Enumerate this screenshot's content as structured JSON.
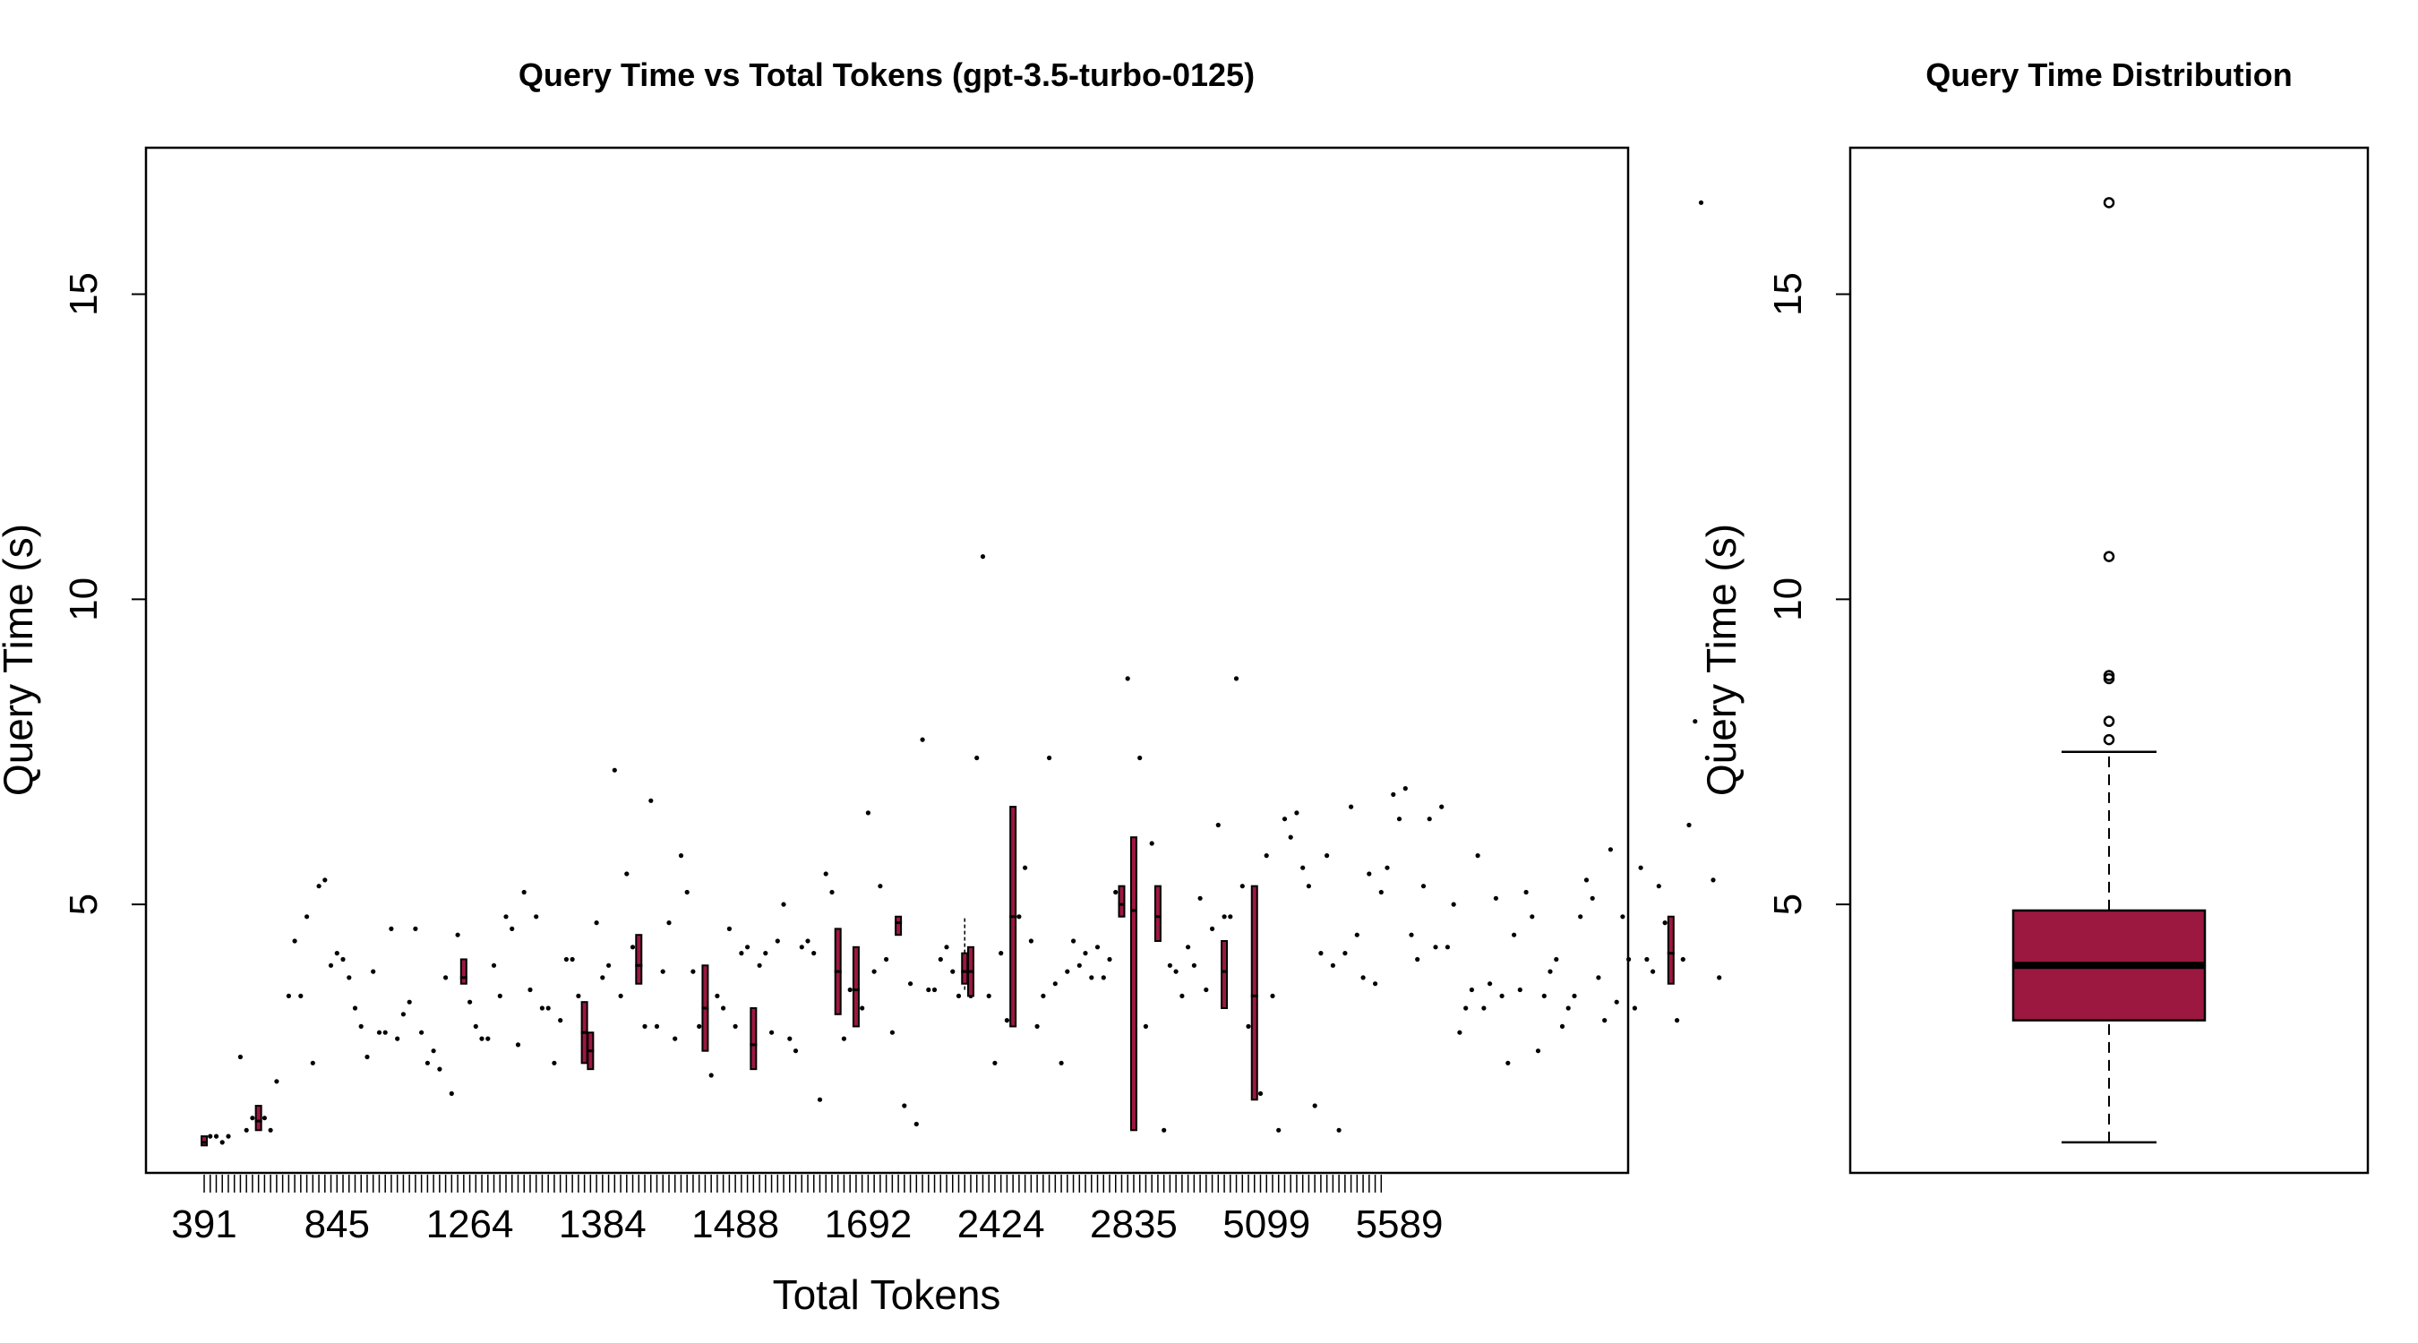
{
  "colors": {
    "box_fill": "#9c1840",
    "stroke": "#000000",
    "background": "#ffffff"
  },
  "chart_data": [
    {
      "type": "box",
      "title": "Query Time vs Total Tokens (gpt-3.5-turbo-0125)",
      "xlabel": "Total Tokens",
      "ylabel": "Query Time (s)",
      "ylim": [
        0.6,
        17.4
      ],
      "y_ticks": [
        "5",
        "10",
        "15"
      ],
      "x_ticks": [
        "391",
        "845",
        "1264",
        "1384",
        "1488",
        "1692",
        "2424",
        "2835",
        "5099",
        "5589"
      ],
      "category_count": 196,
      "single_values": [
        [
          2,
          1.2
        ],
        [
          3,
          1.2
        ],
        [
          4,
          1.1
        ],
        [
          5,
          1.2
        ],
        [
          7,
          2.5
        ],
        [
          8,
          1.3
        ],
        [
          9,
          1.5
        ],
        [
          11,
          1.5
        ],
        [
          12,
          1.3
        ],
        [
          13,
          2.1
        ],
        [
          15,
          3.5
        ],
        [
          16,
          4.4
        ],
        [
          17,
          3.5
        ],
        [
          18,
          4.8
        ],
        [
          19,
          2.4
        ],
        [
          20,
          5.3
        ],
        [
          21,
          5.4
        ],
        [
          22,
          4.0
        ],
        [
          23,
          4.2
        ],
        [
          24,
          4.1
        ],
        [
          25,
          3.8
        ],
        [
          26,
          3.3
        ],
        [
          27,
          3.0
        ],
        [
          28,
          2.5
        ],
        [
          29,
          3.9
        ],
        [
          30,
          2.9
        ],
        [
          31,
          2.9
        ],
        [
          32,
          4.6
        ],
        [
          33,
          2.8
        ],
        [
          34,
          3.2
        ],
        [
          35,
          3.4
        ],
        [
          36,
          4.6
        ],
        [
          37,
          2.9
        ],
        [
          38,
          2.4
        ],
        [
          39,
          2.6
        ],
        [
          40,
          2.3
        ],
        [
          41,
          3.8
        ],
        [
          42,
          1.9
        ],
        [
          43,
          4.5
        ],
        [
          45,
          3.4
        ],
        [
          46,
          3.0
        ],
        [
          47,
          2.8
        ],
        [
          48,
          2.8
        ],
        [
          49,
          4.0
        ],
        [
          50,
          3.5
        ],
        [
          51,
          4.8
        ],
        [
          52,
          4.6
        ],
        [
          53,
          2.7
        ],
        [
          54,
          5.2
        ],
        [
          55,
          3.6
        ],
        [
          56,
          4.8
        ],
        [
          57,
          3.3
        ],
        [
          58,
          3.3
        ],
        [
          59,
          2.4
        ],
        [
          60,
          3.1
        ],
        [
          61,
          4.1
        ],
        [
          62,
          4.1
        ],
        [
          63,
          3.5
        ],
        [
          66,
          4.7
        ],
        [
          67,
          3.8
        ],
        [
          68,
          4.0
        ],
        [
          69,
          7.2
        ],
        [
          70,
          3.5
        ],
        [
          71,
          5.5
        ],
        [
          72,
          4.3
        ],
        [
          74,
          3.0
        ],
        [
          75,
          6.7
        ],
        [
          76,
          3.0
        ],
        [
          77,
          3.9
        ],
        [
          78,
          4.7
        ],
        [
          79,
          2.8
        ],
        [
          80,
          5.8
        ],
        [
          81,
          5.2
        ],
        [
          82,
          3.9
        ],
        [
          83,
          3.0
        ],
        [
          85,
          2.2
        ],
        [
          86,
          3.5
        ],
        [
          87,
          3.3
        ],
        [
          88,
          4.6
        ],
        [
          89,
          3.0
        ],
        [
          90,
          4.2
        ],
        [
          91,
          4.3
        ],
        [
          93,
          4.0
        ],
        [
          94,
          4.2
        ],
        [
          95,
          2.9
        ],
        [
          96,
          4.4
        ],
        [
          97,
          5.0
        ],
        [
          98,
          2.8
        ],
        [
          99,
          2.6
        ],
        [
          100,
          4.3
        ],
        [
          101,
          4.4
        ],
        [
          102,
          4.2
        ],
        [
          103,
          1.8
        ],
        [
          104,
          5.5
        ],
        [
          105,
          5.2
        ],
        [
          107,
          2.8
        ],
        [
          108,
          3.6
        ],
        [
          110,
          3.3
        ],
        [
          111,
          6.5
        ],
        [
          112,
          3.9
        ],
        [
          113,
          5.3
        ],
        [
          114,
          4.1
        ],
        [
          115,
          2.9
        ],
        [
          117,
          1.7
        ],
        [
          118,
          3.7
        ],
        [
          119,
          1.4
        ],
        [
          120,
          7.7
        ],
        [
          121,
          3.6
        ],
        [
          122,
          3.6
        ],
        [
          123,
          4.1
        ],
        [
          124,
          4.3
        ],
        [
          125,
          3.9
        ],
        [
          126,
          3.5
        ],
        [
          128,
          3.5
        ],
        [
          129,
          7.4
        ],
        [
          130,
          10.7
        ],
        [
          131,
          3.5
        ],
        [
          132,
          2.4
        ],
        [
          133,
          4.2
        ],
        [
          134,
          3.1
        ],
        [
          136,
          4.8
        ],
        [
          137,
          5.6
        ],
        [
          138,
          4.4
        ],
        [
          139,
          3.0
        ],
        [
          140,
          3.5
        ],
        [
          141,
          7.4
        ],
        [
          142,
          3.7
        ],
        [
          143,
          2.4
        ],
        [
          144,
          3.9
        ],
        [
          145,
          4.4
        ],
        [
          146,
          4.0
        ],
        [
          147,
          4.2
        ],
        [
          148,
          3.8
        ],
        [
          149,
          4.3
        ],
        [
          150,
          3.8
        ],
        [
          151,
          4.1
        ],
        [
          152,
          5.2
        ],
        [
          154,
          8.7
        ],
        [
          156,
          7.4
        ],
        [
          157,
          3.0
        ],
        [
          158,
          6.0
        ],
        [
          160,
          1.3
        ],
        [
          161,
          4.0
        ],
        [
          162,
          3.9
        ],
        [
          163,
          3.5
        ],
        [
          164,
          4.3
        ],
        [
          165,
          4.0
        ],
        [
          166,
          5.1
        ],
        [
          167,
          3.6
        ],
        [
          168,
          4.6
        ],
        [
          169,
          6.3
        ],
        [
          170,
          4.8
        ],
        [
          171,
          4.8
        ],
        [
          172,
          8.7
        ],
        [
          173,
          5.3
        ],
        [
          174,
          3.0
        ],
        [
          176,
          1.9
        ],
        [
          177,
          5.8
        ],
        [
          178,
          3.5
        ],
        [
          179,
          1.3
        ],
        [
          180,
          6.4
        ],
        [
          181,
          6.1
        ],
        [
          182,
          6.5
        ],
        [
          183,
          5.6
        ],
        [
          184,
          5.3
        ],
        [
          185,
          1.7
        ],
        [
          186,
          4.2
        ],
        [
          187,
          5.8
        ],
        [
          188,
          4.0
        ],
        [
          189,
          1.3
        ],
        [
          190,
          4.2
        ],
        [
          191,
          6.6
        ],
        [
          192,
          4.5
        ],
        [
          193,
          3.8
        ],
        [
          194,
          5.5
        ],
        [
          195,
          3.7
        ],
        [
          196,
          5.2
        ],
        [
          197,
          5.6
        ],
        [
          198,
          6.8
        ],
        [
          199,
          6.4
        ],
        [
          200,
          6.9
        ],
        [
          201,
          4.5
        ],
        [
          202,
          4.1
        ],
        [
          203,
          5.3
        ],
        [
          204,
          6.4
        ],
        [
          205,
          4.3
        ],
        [
          206,
          6.6
        ],
        [
          207,
          4.3
        ],
        [
          208,
          5.0
        ],
        [
          209,
          2.9
        ],
        [
          210,
          3.3
        ],
        [
          211,
          3.6
        ],
        [
          212,
          5.8
        ],
        [
          213,
          3.3
        ],
        [
          214,
          3.7
        ],
        [
          215,
          5.1
        ],
        [
          216,
          3.5
        ],
        [
          217,
          2.4
        ],
        [
          218,
          4.5
        ],
        [
          219,
          3.6
        ],
        [
          220,
          5.2
        ],
        [
          221,
          4.8
        ],
        [
          222,
          2.6
        ],
        [
          223,
          3.5
        ],
        [
          224,
          3.9
        ],
        [
          225,
          4.1
        ],
        [
          226,
          3.0
        ],
        [
          227,
          3.3
        ],
        [
          228,
          3.5
        ],
        [
          229,
          4.8
        ],
        [
          230,
          5.4
        ],
        [
          231,
          5.1
        ],
        [
          232,
          3.8
        ],
        [
          233,
          3.1
        ],
        [
          234,
          5.9
        ],
        [
          235,
          3.4
        ],
        [
          236,
          4.8
        ],
        [
          237,
          4.1
        ],
        [
          238,
          3.3
        ],
        [
          239,
          5.6
        ],
        [
          240,
          4.1
        ],
        [
          241,
          3.9
        ],
        [
          242,
          5.3
        ],
        [
          243,
          4.7
        ],
        [
          245,
          3.1
        ],
        [
          246,
          4.1
        ],
        [
          247,
          6.3
        ],
        [
          248,
          8.0
        ],
        [
          249,
          16.5
        ],
        [
          250,
          7.4
        ],
        [
          251,
          5.4
        ],
        [
          252,
          3.8
        ]
      ],
      "groups": [
        {
          "x": 1,
          "low": 1.05,
          "q1": 1.05,
          "med": 1.1,
          "q3": 1.2,
          "high": 1.2
        },
        {
          "x": 10,
          "low": 1.3,
          "q1": 1.3,
          "med": 1.45,
          "q3": 1.7,
          "high": 1.7
        },
        {
          "x": 44,
          "low": 3.7,
          "q1": 3.7,
          "med": 3.8,
          "q3": 4.1,
          "high": 4.1
        },
        {
          "x": 64,
          "low": 2.4,
          "q1": 2.4,
          "med": 2.9,
          "q3": 3.4,
          "high": 3.4
        },
        {
          "x": 65,
          "low": 2.3,
          "q1": 2.3,
          "med": 2.6,
          "q3": 2.9,
          "high": 2.9
        },
        {
          "x": 73,
          "low": 3.7,
          "q1": 3.7,
          "med": 4.0,
          "q3": 4.5,
          "high": 4.5
        },
        {
          "x": 84,
          "low": 2.6,
          "q1": 2.6,
          "med": 3.3,
          "q3": 4.0,
          "high": 4.0
        },
        {
          "x": 92,
          "low": 2.3,
          "q1": 2.3,
          "med": 2.7,
          "q3": 3.3,
          "high": 3.3
        },
        {
          "x": 106,
          "low": 3.2,
          "q1": 3.2,
          "med": 3.9,
          "q3": 4.6,
          "high": 4.6
        },
        {
          "x": 109,
          "low": 3.0,
          "q1": 3.0,
          "med": 3.6,
          "q3": 4.3,
          "high": 4.3
        },
        {
          "x": 116,
          "low": 4.5,
          "q1": 4.5,
          "med": 4.7,
          "q3": 4.8,
          "high": 4.8
        },
        {
          "x": 127,
          "low": 3.6,
          "q1": 3.7,
          "med": 3.9,
          "q3": 4.2,
          "high": 4.8
        },
        {
          "x": 128,
          "low": 3.5,
          "q1": 3.5,
          "med": 3.9,
          "q3": 4.3,
          "high": 4.3
        },
        {
          "x": 135,
          "low": 3.0,
          "q1": 3.0,
          "med": 4.8,
          "q3": 6.6,
          "high": 6.6
        },
        {
          "x": 153,
          "low": 4.8,
          "q1": 4.8,
          "med": 5.0,
          "q3": 5.3,
          "high": 5.3
        },
        {
          "x": 155,
          "low": 1.3,
          "q1": 1.3,
          "med": 4.9,
          "q3": 6.1,
          "high": 6.1
        },
        {
          "x": 159,
          "low": 4.4,
          "q1": 4.4,
          "med": 4.8,
          "q3": 5.3,
          "high": 5.3
        },
        {
          "x": 170,
          "low": 3.3,
          "q1": 3.3,
          "med": 3.9,
          "q3": 4.4,
          "high": 4.4
        },
        {
          "x": 175,
          "low": 1.8,
          "q1": 1.8,
          "med": 3.5,
          "q3": 5.3,
          "high": 5.3
        },
        {
          "x": 244,
          "low": 3.7,
          "q1": 3.7,
          "med": 4.2,
          "q3": 4.8,
          "high": 4.8
        }
      ]
    },
    {
      "type": "box",
      "title": "Query Time Distribution",
      "xlabel": "",
      "ylabel": "Query Time (s)",
      "ylim": [
        0.6,
        17.4
      ],
      "y_ticks": [
        "5",
        "10",
        "15"
      ],
      "box": {
        "low": 1.1,
        "q1": 3.1,
        "median": 4.0,
        "q3": 4.9,
        "high": 7.5
      },
      "outliers": [
        7.7,
        8.0,
        8.7,
        8.75,
        10.7,
        16.5
      ]
    }
  ]
}
